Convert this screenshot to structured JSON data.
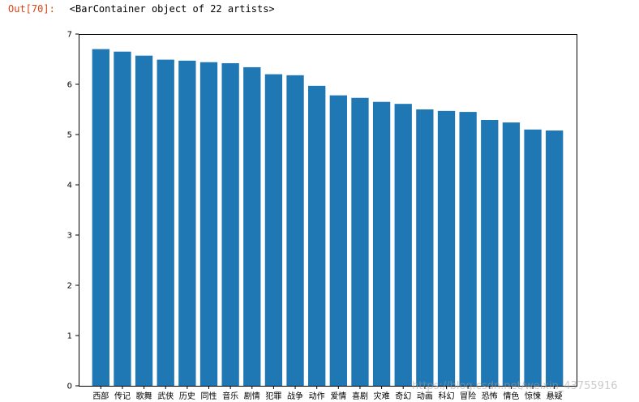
{
  "output": {
    "prompt": "Out[70]:",
    "text": "<BarContainer object of 22 artists>"
  },
  "colors": {
    "bar": "#1f77b4",
    "prompt": "#d84315"
  },
  "watermark": "https://blog.csdn.net/weixin_43755916",
  "chart_data": {
    "type": "bar",
    "categories": [
      "西部",
      "传记",
      "歌舞",
      "武侠",
      "历史",
      "同性",
      "音乐",
      "剧情",
      "犯罪",
      "战争",
      "动作",
      "爱情",
      "喜剧",
      "灾难",
      "奇幻",
      "动画",
      "科幻",
      "冒险",
      "恐怖",
      "情色",
      "惊悚",
      "悬疑"
    ],
    "values": [
      6.7,
      6.65,
      6.57,
      6.49,
      6.47,
      6.44,
      6.42,
      6.34,
      6.2,
      6.18,
      5.97,
      5.78,
      5.73,
      5.65,
      5.61,
      5.5,
      5.47,
      5.45,
      5.29,
      5.24,
      5.1,
      5.08
    ],
    "yticks": [
      "0",
      "1",
      "2",
      "3",
      "4",
      "5",
      "6",
      "7"
    ],
    "ylim": [
      0,
      7
    ],
    "title": "",
    "xlabel": "",
    "ylabel": "",
    "grid": false,
    "legend": false
  }
}
